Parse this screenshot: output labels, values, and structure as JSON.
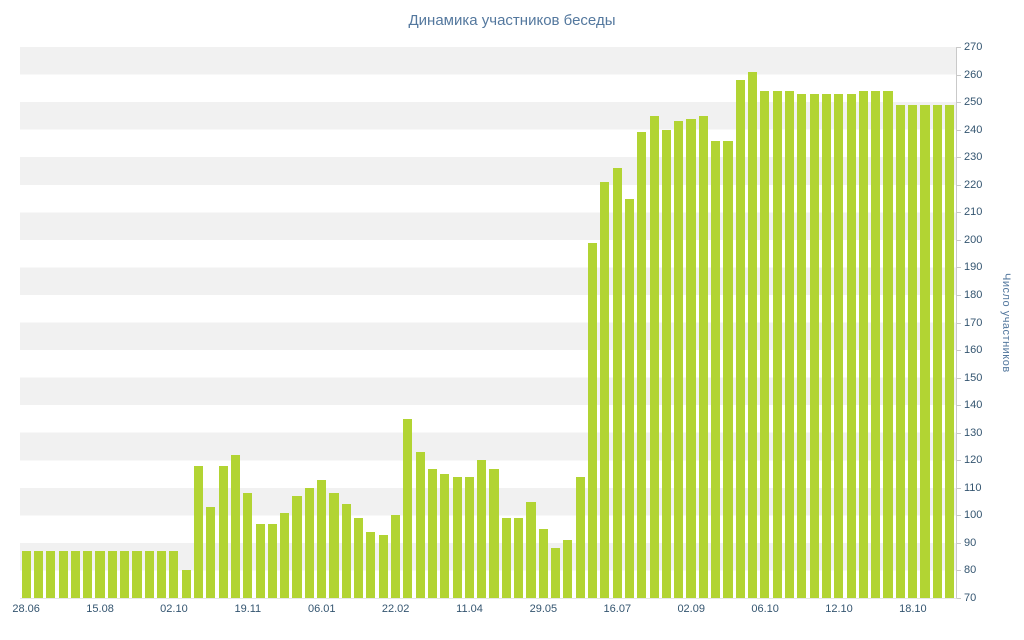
{
  "chart_data": {
    "type": "bar",
    "title": "Динамика участников беседы",
    "xlabel": "",
    "ylabel": "Число участников",
    "ylim": [
      70,
      270
    ],
    "y_tick_step": 10,
    "grid": "alternating horizontal bands every 10 units",
    "legend": "none",
    "x_tick_labels": [
      {
        "label": "28.06",
        "slot": 0
      },
      {
        "label": "15.08",
        "slot": 6
      },
      {
        "label": "02.10",
        "slot": 12
      },
      {
        "label": "19.11",
        "slot": 18
      },
      {
        "label": "06.01",
        "slot": 24
      },
      {
        "label": "22.02",
        "slot": 30
      },
      {
        "label": "11.04",
        "slot": 36
      },
      {
        "label": "29.05",
        "slot": 42
      },
      {
        "label": "16.07",
        "slot": 48
      },
      {
        "label": "02.09",
        "slot": 54
      },
      {
        "label": "06.10",
        "slot": 60
      },
      {
        "label": "12.10",
        "slot": 66
      },
      {
        "label": "18.10",
        "slot": 72
      }
    ],
    "values": [
      87,
      87,
      87,
      87,
      87,
      87,
      87,
      87,
      87,
      87,
      87,
      87,
      87,
      80,
      118,
      103,
      118,
      122,
      108,
      97,
      97,
      101,
      107,
      110,
      113,
      108,
      104,
      99,
      94,
      93,
      100,
      135,
      123,
      117,
      115,
      114,
      114,
      120,
      117,
      99,
      99,
      105,
      95,
      88,
      91,
      114,
      199,
      221,
      226,
      215,
      239,
      245,
      240,
      243,
      244,
      245,
      236,
      236,
      258,
      261,
      254,
      254,
      254,
      253,
      253,
      253,
      253,
      253,
      254,
      254,
      254,
      249,
      249,
      249,
      249,
      249
    ]
  },
  "colors": {
    "bar": "#b2d433",
    "band": "#f1f1f1",
    "title": "#54789e",
    "tick_label": "#345570",
    "axis_line": "#c9c9c9",
    "background": "#ffffff"
  }
}
